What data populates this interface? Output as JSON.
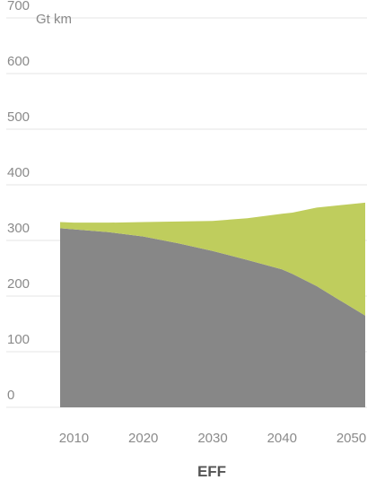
{
  "chart_data": {
    "type": "area",
    "title": "EFF",
    "ylabel": "Gt km",
    "ylim": [
      0,
      700
    ],
    "xlim": [
      2008,
      2052
    ],
    "yticks": [
      0,
      100,
      200,
      300,
      400,
      500,
      600,
      700
    ],
    "xticks": [
      2010,
      2020,
      2030,
      2040,
      2050
    ],
    "grid": true,
    "x": [
      2008,
      2010,
      2015,
      2020,
      2025,
      2030,
      2035,
      2040,
      2041.5,
      2045,
      2048,
      2052
    ],
    "series": [
      {
        "values": [
          322,
          320,
          315,
          307,
          295,
          281,
          265,
          248,
          240,
          218,
          195,
          165
        ],
        "color": "#878787"
      },
      {
        "values": [
          11,
          12,
          17,
          26,
          39,
          54,
          75,
          100,
          110,
          141,
          168,
          203
        ],
        "color": "#bfcd5d"
      }
    ]
  }
}
